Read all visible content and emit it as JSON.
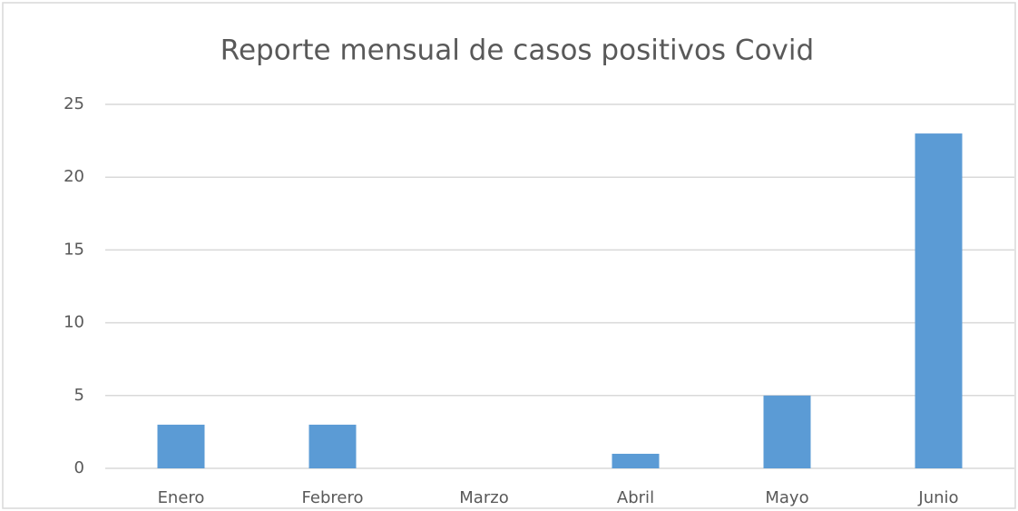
{
  "chart_data": {
    "type": "bar",
    "title": "Reporte mensual de casos positivos Covid",
    "categories": [
      "Enero",
      "Febrero",
      "Marzo",
      "Abril",
      "Mayo",
      "Junio"
    ],
    "values": [
      3,
      3,
      0,
      1,
      5,
      23
    ],
    "color": "#5b9bd5",
    "ylim": [
      0,
      25
    ],
    "yticks": [
      0,
      5,
      10,
      15,
      20,
      25
    ],
    "grid": true
  }
}
